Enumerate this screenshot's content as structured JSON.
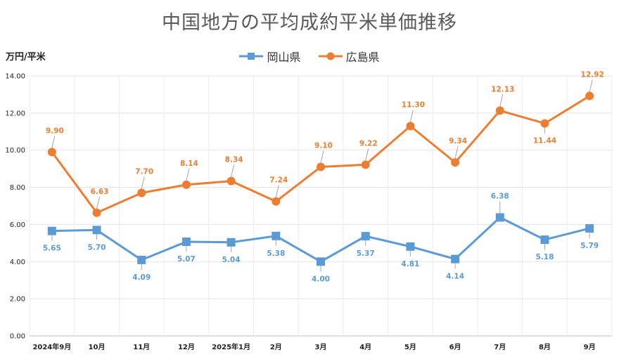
{
  "chart_data": {
    "type": "line",
    "title": "中国地方の平均成約平米単価推移",
    "ylabel": "万円/平米",
    "xlabel": "",
    "ylim": [
      0,
      14
    ],
    "yticks": [
      "0.00",
      "2.00",
      "4.00",
      "6.00",
      "8.00",
      "10.00",
      "12.00",
      "14.00"
    ],
    "categories": [
      "2024年9月",
      "10月",
      "11月",
      "12月",
      "2025年1月",
      "2月",
      "3月",
      "4月",
      "5月",
      "6月",
      "7月",
      "8月",
      "9月"
    ],
    "grid": true,
    "legend_position": "top-center",
    "series": [
      {
        "name": "岡山県",
        "color": "#5B9BD5",
        "marker": "square",
        "values": [
          5.65,
          5.7,
          4.09,
          5.07,
          5.04,
          5.38,
          4.0,
          5.37,
          4.81,
          4.14,
          6.38,
          5.18,
          5.79
        ],
        "labels": [
          "5.65",
          "5.70",
          "4.09",
          "5.07",
          "5.04",
          "5.38",
          "4.00",
          "5.37",
          "4.81",
          "4.14",
          "6.38",
          "5.18",
          "5.79"
        ]
      },
      {
        "name": "広島県",
        "color": "#ED7D31",
        "marker": "circle",
        "values": [
          9.9,
          6.63,
          7.7,
          8.14,
          8.34,
          7.24,
          9.1,
          9.22,
          11.3,
          9.34,
          12.13,
          11.44,
          12.92
        ],
        "labels": [
          "9.90",
          "6.63",
          "7.70",
          "8.14",
          "8.34",
          "7.24",
          "9.10",
          "9.22",
          "11.30",
          "9.34",
          "12.13",
          "11.44",
          "12.92"
        ]
      }
    ]
  }
}
